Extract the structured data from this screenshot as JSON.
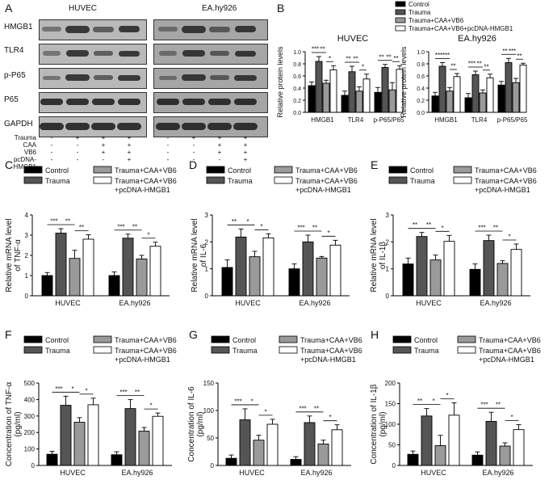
{
  "panel_letters": [
    "A",
    "B",
    "C",
    "D",
    "E",
    "F",
    "G",
    "H"
  ],
  "western_blot": {
    "cell_lines": [
      "HUVEC",
      "EA.hy926"
    ],
    "proteins": [
      "HMGB1",
      "TLR4",
      "p-P65",
      "P65",
      "GAPDH"
    ],
    "conditions": [
      {
        "label": "Trauma",
        "signs": [
          "-",
          "+",
          "+",
          "+"
        ]
      },
      {
        "label": "CAA",
        "signs": [
          "-",
          "-",
          "+",
          "+"
        ]
      },
      {
        "label": "VB6",
        "signs": [
          "-",
          "-",
          "+",
          "+"
        ]
      },
      {
        "label": "pcDNA-HMGB1",
        "signs": [
          "-",
          "-",
          "-",
          "+"
        ]
      }
    ]
  },
  "legend": {
    "groups": [
      "Control",
      "Trauma",
      "Trauma+CAA+VB6",
      "Trauma+CAA+VB6+pcDNA-HMGB1"
    ],
    "groups_two_line": [
      "Control",
      "Trauma",
      "Trauma+CAA+VB6",
      "Trauma+CAA+VB6",
      "+pcDNA-HMGB1"
    ]
  },
  "colors": {
    "Control": "#000000",
    "Trauma": "#555555",
    "Trauma+CAA+VB6": "#9a9a9a",
    "Trauma+CAA+VB6+pcDNA-HMGB1": "#ffffff"
  },
  "chart_data": [
    {
      "panel": "B",
      "type": "bar",
      "title": "HUVEC",
      "categories": [
        "HMGB1",
        "TLR4",
        "p-P65/P65"
      ],
      "ylabel": "Relative protein levels",
      "ylim": [
        0,
        1.0
      ],
      "yticks": [
        0.0,
        0.2,
        0.4,
        0.6,
        0.8,
        1.0
      ],
      "series": [
        {
          "name": "Control",
          "values": [
            0.44,
            0.28,
            0.33
          ],
          "err": [
            0.06,
            0.07,
            0.08
          ]
        },
        {
          "name": "Trauma",
          "values": [
            0.84,
            0.67,
            0.74
          ],
          "err": [
            0.08,
            0.09,
            0.05
          ]
        },
        {
          "name": "Trauma+CAA+VB6",
          "values": [
            0.48,
            0.35,
            0.37
          ],
          "err": [
            0.05,
            0.07,
            0.12
          ]
        },
        {
          "name": "Trauma+CAA+VB6+pcDNA-HMGB1",
          "values": [
            0.7,
            0.55,
            0.71
          ],
          "err": [
            0.07,
            0.08,
            0.06
          ]
        }
      ],
      "sig": [
        [
          "***",
          "**",
          "*"
        ],
        [
          "**",
          "**",
          "*"
        ],
        [
          "**",
          "**",
          "**"
        ]
      ]
    },
    {
      "panel": "B",
      "type": "bar",
      "title": "EA.hy926",
      "categories": [
        "HMGB1",
        "TLR4",
        "p-P65/P65"
      ],
      "ylabel": "Relative protein levels",
      "ylim": [
        0,
        1.0
      ],
      "yticks": [
        0.0,
        0.2,
        0.4,
        0.6,
        0.8,
        1.0
      ],
      "series": [
        {
          "name": "Control",
          "values": [
            0.27,
            0.24,
            0.45
          ],
          "err": [
            0.06,
            0.07,
            0.06
          ]
        },
        {
          "name": "Trauma",
          "values": [
            0.76,
            0.62,
            0.82
          ],
          "err": [
            0.06,
            0.06,
            0.07
          ]
        },
        {
          "name": "Trauma+CAA+VB6",
          "values": [
            0.35,
            0.32,
            0.49
          ],
          "err": [
            0.06,
            0.05,
            0.07
          ]
        },
        {
          "name": "Trauma+CAA+VB6+pcDNA-HMGB1",
          "values": [
            0.59,
            0.57,
            0.78
          ],
          "err": [
            0.05,
            0.06,
            0.03
          ]
        }
      ],
      "sig": [
        [
          "***",
          "***",
          "**"
        ],
        [
          "***",
          "**",
          "**"
        ],
        [
          "**",
          "***",
          "**"
        ]
      ]
    },
    {
      "panel": "C",
      "type": "bar",
      "title": "",
      "categories": [
        "HUVEC",
        "EA.hy926"
      ],
      "ylabel": "Relative mRNA level of TNF-α",
      "ylim": [
        0,
        4
      ],
      "yticks": [
        0,
        1,
        2,
        3,
        4
      ],
      "series": [
        {
          "name": "Control",
          "values": [
            1.0,
            1.0
          ],
          "err": [
            0.15,
            0.18
          ]
        },
        {
          "name": "Trauma",
          "values": [
            3.1,
            2.85
          ],
          "err": [
            0.22,
            0.2
          ]
        },
        {
          "name": "Trauma+CAA+VB6",
          "values": [
            1.85,
            1.82
          ],
          "err": [
            0.4,
            0.18
          ]
        },
        {
          "name": "Trauma+CAA+VB6+pcDNA-HMGB1",
          "values": [
            2.8,
            2.45
          ],
          "err": [
            0.22,
            0.2
          ]
        }
      ],
      "sig": [
        [
          "***",
          "**",
          "**"
        ],
        [
          "***",
          "**",
          "*"
        ]
      ]
    },
    {
      "panel": "D",
      "type": "bar",
      "title": "",
      "categories": [
        "HUVEC",
        "EA.hy926"
      ],
      "ylabel": "Relative mRNA level of IL-6",
      "ylim": [
        0,
        3
      ],
      "yticks": [
        0,
        1,
        2,
        3
      ],
      "series": [
        {
          "name": "Control",
          "values": [
            1.05,
            1.0
          ],
          "err": [
            0.28,
            0.18
          ]
        },
        {
          "name": "Trauma",
          "values": [
            2.18,
            2.0
          ],
          "err": [
            0.3,
            0.25
          ]
        },
        {
          "name": "Trauma+CAA+VB6",
          "values": [
            1.45,
            1.4
          ],
          "err": [
            0.2,
            0.06
          ]
        },
        {
          "name": "Trauma+CAA+VB6+pcDNA-HMGB1",
          "values": [
            2.15,
            1.88
          ],
          "err": [
            0.15,
            0.18
          ]
        }
      ],
      "sig": [
        [
          "**",
          "*",
          "*"
        ],
        [
          "***",
          "**",
          "*"
        ]
      ]
    },
    {
      "panel": "E",
      "type": "bar",
      "title": "",
      "categories": [
        "HUVEC",
        "EA.hy926"
      ],
      "ylabel": "Relative mRNA level of IL-1β",
      "ylim": [
        0,
        3
      ],
      "yticks": [
        0,
        1,
        2,
        3
      ],
      "series": [
        {
          "name": "Control",
          "values": [
            1.18,
            0.98
          ],
          "err": [
            0.22,
            0.2
          ]
        },
        {
          "name": "Trauma",
          "values": [
            2.2,
            2.05
          ],
          "err": [
            0.15,
            0.2
          ]
        },
        {
          "name": "Trauma+CAA+VB6",
          "values": [
            1.33,
            1.2
          ],
          "err": [
            0.18,
            0.1
          ]
        },
        {
          "name": "Trauma+CAA+VB6+pcDNA-HMGB1",
          "values": [
            2.02,
            1.72
          ],
          "err": [
            0.22,
            0.2
          ]
        }
      ],
      "sig": [
        [
          "**",
          "**",
          "*"
        ],
        [
          "***",
          "**",
          "*"
        ]
      ]
    },
    {
      "panel": "F",
      "type": "bar",
      "title": "",
      "categories": [
        "HUVEC",
        "EA.hy926"
      ],
      "ylabel": "Concentration of TNF-α (pg/ml)",
      "ylim": [
        0,
        500
      ],
      "yticks": [
        0,
        100,
        200,
        300,
        400,
        500
      ],
      "series": [
        {
          "name": "Control",
          "values": [
            68,
            65
          ],
          "err": [
            18,
            18
          ]
        },
        {
          "name": "Trauma",
          "values": [
            365,
            345
          ],
          "err": [
            55,
            55
          ]
        },
        {
          "name": "Trauma+CAA+VB6",
          "values": [
            262,
            208
          ],
          "err": [
            28,
            22
          ]
        },
        {
          "name": "Trauma+CAA+VB6+pcDNA-HMGB1",
          "values": [
            368,
            298
          ],
          "err": [
            40,
            20
          ]
        }
      ],
      "sig": [
        [
          "***",
          "*",
          "*"
        ],
        [
          "***",
          "**",
          "*"
        ]
      ]
    },
    {
      "panel": "G",
      "type": "bar",
      "title": "",
      "categories": [
        "HUVEC",
        "EA.hy926"
      ],
      "ylabel": "Concentration of IL-6 (pg/ml)",
      "ylim": [
        0,
        150
      ],
      "yticks": [
        0,
        50,
        100,
        150
      ],
      "series": [
        {
          "name": "Control",
          "values": [
            13,
            11
          ],
          "err": [
            6,
            5
          ]
        },
        {
          "name": "Trauma",
          "values": [
            83,
            78
          ],
          "err": [
            20,
            12
          ]
        },
        {
          "name": "Trauma+CAA+VB6",
          "values": [
            46,
            39
          ],
          "err": [
            9,
            7
          ]
        },
        {
          "name": "Trauma+CAA+VB6+pcDNA-HMGB1",
          "values": [
            75,
            65
          ],
          "err": [
            9,
            9
          ]
        }
      ],
      "sig": [
        [
          "***",
          "*",
          "*"
        ],
        [
          "***",
          "**",
          "*"
        ]
      ]
    },
    {
      "panel": "H",
      "type": "bar",
      "title": "",
      "categories": [
        "HUVEC",
        "EA.hy926"
      ],
      "ylabel": "Concentration of IL-1β (pg/ml)",
      "ylim": [
        0,
        200
      ],
      "yticks": [
        0,
        50,
        100,
        150,
        200
      ],
      "series": [
        {
          "name": "Control",
          "values": [
            27,
            25
          ],
          "err": [
            8,
            8
          ]
        },
        {
          "name": "Trauma",
          "values": [
            120,
            107
          ],
          "err": [
            18,
            22
          ]
        },
        {
          "name": "Trauma+CAA+VB6",
          "values": [
            48,
            47
          ],
          "err": [
            25,
            8
          ]
        },
        {
          "name": "Trauma+CAA+VB6+pcDNA-HMGB1",
          "values": [
            122,
            87
          ],
          "err": [
            30,
            12
          ]
        }
      ],
      "sig": [
        [
          "**",
          "*",
          "*"
        ],
        [
          "***",
          "**",
          "*"
        ]
      ]
    }
  ]
}
